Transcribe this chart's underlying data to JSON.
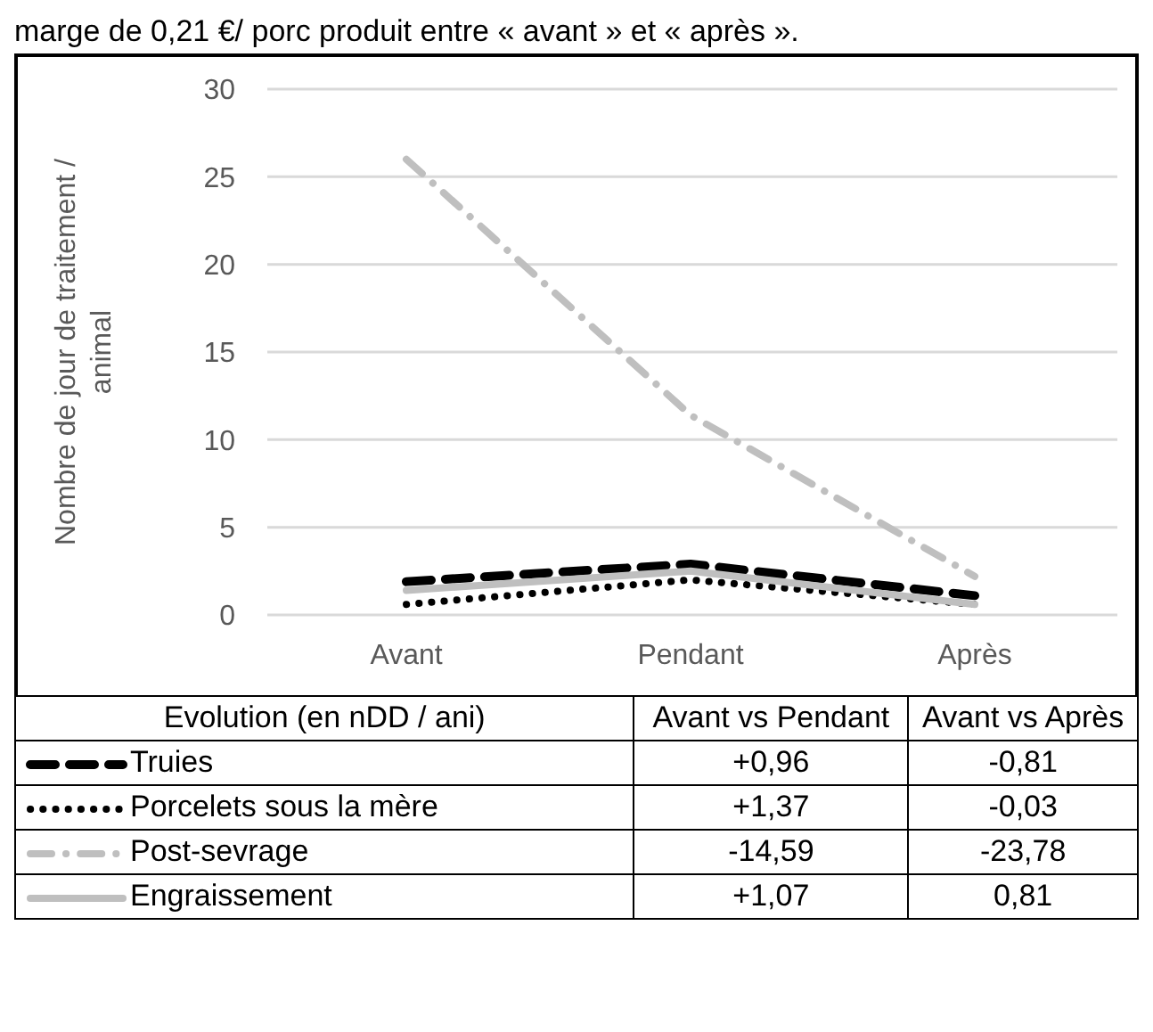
{
  "chart_data": {
    "type": "line",
    "ylabel": "Nombre de jour de traitement / animal",
    "categories": [
      "Avant",
      "Pendant",
      "Après"
    ],
    "series": [
      {
        "name": "Truies",
        "color": "#000000",
        "values": [
          1.9,
          2.9,
          1.1
        ],
        "line_style": "dashed"
      },
      {
        "name": "Porcelets sous la mère",
        "color": "#000000",
        "values": [
          0.6,
          2.0,
          0.6
        ],
        "line_style": "dotted"
      },
      {
        "name": "Post-sevrage",
        "color": "#bfbfbf",
        "values": [
          26.0,
          11.4,
          2.2
        ],
        "line_style": "dashdot"
      },
      {
        "name": "Engraissement",
        "color": "#bfbfbf",
        "values": [
          1.4,
          2.5,
          0.6
        ],
        "line_style": "solid"
      }
    ],
    "ylim": [
      0,
      30
    ],
    "yticks": [
      0,
      5,
      10,
      15,
      20,
      25,
      30
    ],
    "grid": "y",
    "legend": "bottom",
    "marker": "none",
    "annotations": [
      "marge de 0,21 €/ porc produit entre « avant » et « après ».",
      "Evolution (en nDD / ani)",
      "Avant vs Pendant",
      "Avant vs Après",
      "+0,96",
      "-0,81",
      "+1,37",
      "-0,03",
      "-14,59",
      "-23,78",
      "+1,07",
      "0,81"
    ]
  }
}
